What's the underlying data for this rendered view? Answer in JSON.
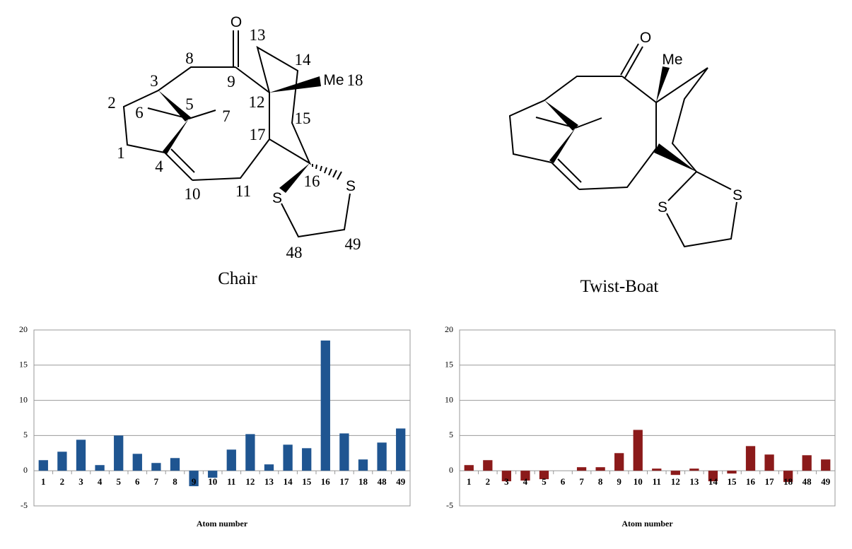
{
  "figures": [
    {
      "title": "Chair",
      "labels": [
        "O",
        "13",
        "8",
        "14",
        "3",
        "9",
        "Me",
        "18",
        "2",
        "5",
        "12",
        "6",
        "7",
        "15",
        "17",
        "1",
        "4",
        "16",
        "S",
        "S",
        "10",
        "11",
        "48",
        "49"
      ]
    },
    {
      "title": "Twist-Boat",
      "labels": [
        "O",
        "Me",
        "S",
        "S"
      ]
    }
  ],
  "chart_data": [
    {
      "type": "bar",
      "xlabel": "Atom number",
      "color": "#1f5591",
      "categories": [
        "1",
        "2",
        "3",
        "4",
        "5",
        "6",
        "7",
        "8",
        "9",
        "10",
        "11",
        "12",
        "13",
        "14",
        "15",
        "16",
        "17",
        "18",
        "48",
        "49"
      ],
      "values": [
        1.5,
        2.7,
        4.4,
        0.8,
        5.0,
        2.4,
        1.1,
        1.8,
        -2.2,
        -1.0,
        3.0,
        5.2,
        0.9,
        3.7,
        3.2,
        18.5,
        5.3,
        1.6,
        4.0,
        6.0
      ],
      "ylim": [
        -5,
        20
      ],
      "yticks": [
        -5,
        0,
        5,
        10,
        15,
        20
      ],
      "grid": true
    },
    {
      "type": "bar",
      "xlabel": "Atom number",
      "color": "#8b1a1a",
      "categories": [
        "1",
        "2",
        "3",
        "4",
        "5",
        "6",
        "7",
        "8",
        "9",
        "10",
        "11",
        "12",
        "13",
        "14",
        "15",
        "16",
        "17",
        "18",
        "48",
        "49"
      ],
      "values": [
        0.8,
        1.5,
        -1.5,
        -1.4,
        -1.2,
        0,
        0.5,
        0.5,
        2.5,
        5.8,
        0.3,
        -0.6,
        0.3,
        -1.5,
        -0.4,
        3.5,
        2.3,
        -1.6,
        2.2,
        1.6
      ],
      "ylim": [
        -5,
        20
      ],
      "yticks": [
        -5,
        0,
        5,
        10,
        15,
        20
      ],
      "grid": true
    }
  ]
}
